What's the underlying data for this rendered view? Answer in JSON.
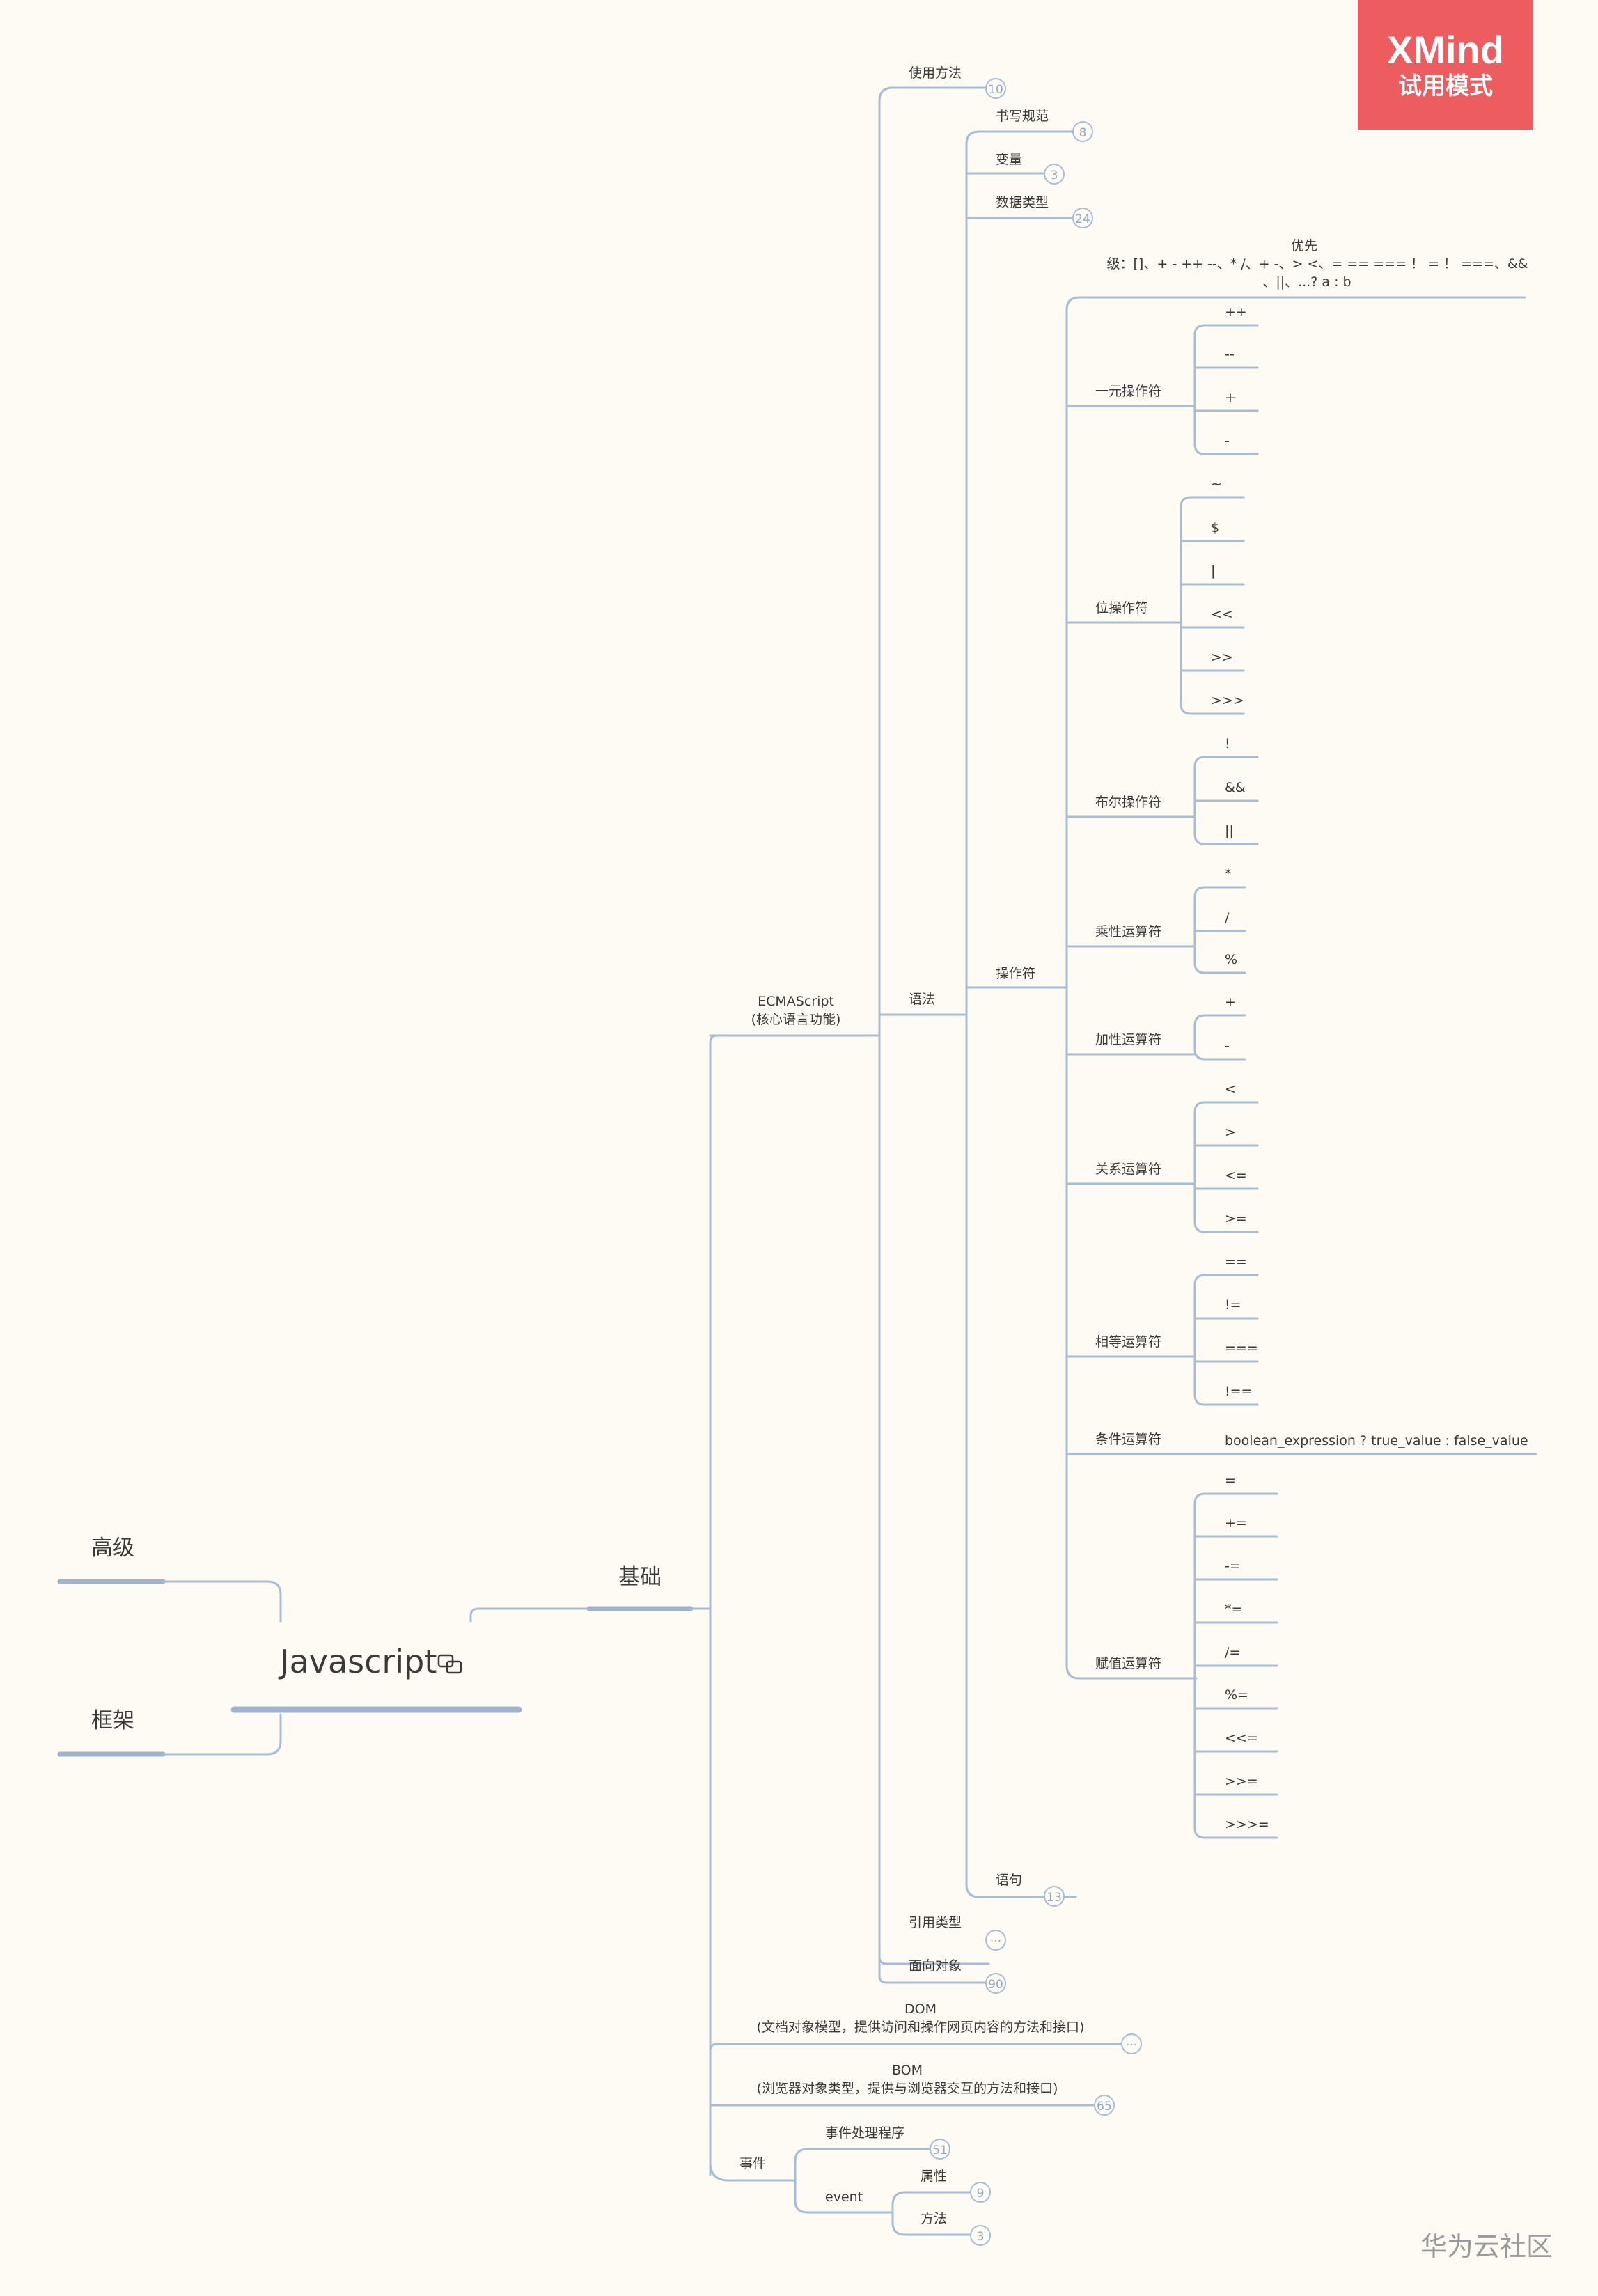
{
  "brand": {
    "name": "XMind",
    "mode": "试用模式"
  },
  "watermark": "华为云社区",
  "root": {
    "label": "Javascript"
  },
  "top_left": [
    "高级",
    "框架"
  ],
  "level1": "基础",
  "ecma": {
    "line1": "ECMAScript",
    "line2": "(核心语言功能)"
  },
  "branches_a": [
    {
      "label": "使用方法",
      "badge": "10"
    },
    {
      "label": "语法"
    },
    {
      "label": "引用类型",
      "badge": "···"
    },
    {
      "label": "面向对象",
      "badge": "90"
    }
  ],
  "syntax_children": [
    {
      "label": "书写规范",
      "badge": "8"
    },
    {
      "label": "变量",
      "badge": "3"
    },
    {
      "label": "数据类型",
      "badge": "24"
    },
    {
      "label": "操作符"
    },
    {
      "label": "语句",
      "badge": "13"
    }
  ],
  "precedence": {
    "line1": "优先",
    "line2": "级：[]、+ - ++ --、* /、+ -、> <、= == === ！ = ！ ===、&&",
    "line3": "、||、...? a : b"
  },
  "operators": [
    {
      "label": "一元操作符",
      "items": [
        "++",
        "--",
        "+",
        "-"
      ]
    },
    {
      "label": "位操作符",
      "items": [
        "~",
        "$",
        "|",
        "<<",
        ">>",
        ">>>"
      ]
    },
    {
      "label": "布尔操作符",
      "items": [
        "!",
        "&&",
        "||"
      ]
    },
    {
      "label": "乘性运算符",
      "items": [
        "*",
        "/",
        "%"
      ]
    },
    {
      "label": "加性运算符",
      "items": [
        "+",
        "-"
      ]
    },
    {
      "label": "关系运算符",
      "items": [
        "<",
        ">",
        "<=",
        ">="
      ]
    },
    {
      "label": "相等运算符",
      "items": [
        "==",
        "!=",
        "===",
        "!=="
      ]
    },
    {
      "label": "条件运算符",
      "items": [
        "boolean_expression ?  true_value : false_value"
      ]
    },
    {
      "label": "赋值运算符",
      "items": [
        "=",
        "+=",
        "-=",
        "*=",
        "/=",
        "%=",
        "<<=",
        ">>=",
        ">>>="
      ]
    }
  ],
  "dom": {
    "line1": "DOM",
    "line2": "(文档对象模型，提供访问和操作网页内容的方法和接口)",
    "badge": "···"
  },
  "bom": {
    "line1": "BOM",
    "line2": "(浏览器对象类型，提供与浏览器交互的方法和接口)",
    "badge": "65"
  },
  "events": {
    "label": "事件",
    "handler": "事件处理程序",
    "handler_badge": "51",
    "event": "event",
    "prop": "属性",
    "prop_badge": "9",
    "method": "方法",
    "method_badge": "3"
  },
  "colors": {
    "line": "#a8bcd6",
    "thick": "#9fb3cf",
    "brand": "#ed5c5f",
    "bg": "#fdfbf4"
  }
}
